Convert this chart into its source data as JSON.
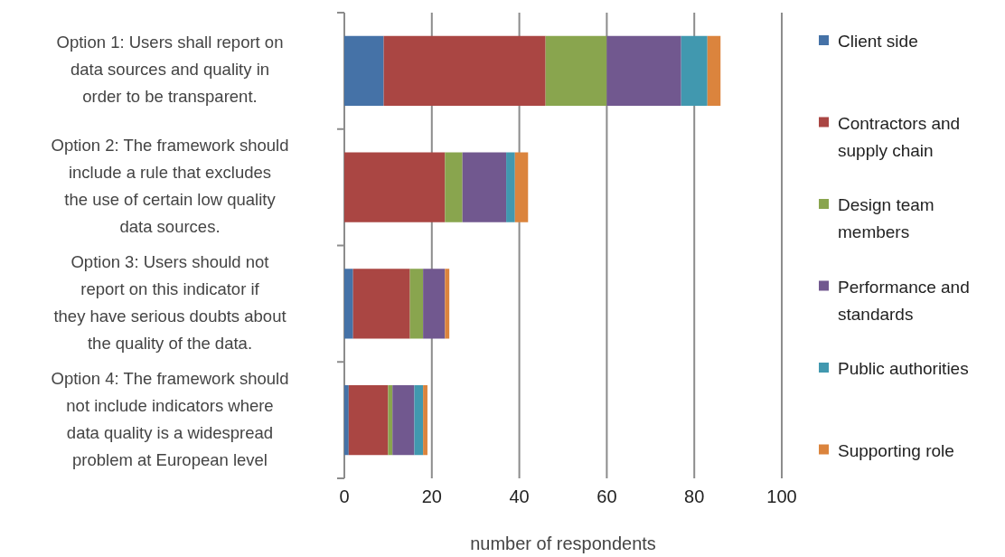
{
  "chart_data": {
    "type": "bar",
    "orientation": "horizontal",
    "stacked": true,
    "xlabel": "number of respondents",
    "categories": [
      "Option 1: Users shall report on data sources and quality in order to be transparent.",
      "Option 2: The framework should include a rule that excludes the use of certain low quality data sources.",
      "Option 3: Users should not report on this indicator if they have serious doubts about the quality of the data.",
      "Option 4: The framework should not include indicators where data quality is a widespread problem at European level"
    ],
    "series": [
      {
        "name": "Client side",
        "color": "#4572a7",
        "values": [
          9,
          0,
          2,
          1
        ]
      },
      {
        "name": "Contractors and supply chain",
        "color": "#aa4643",
        "values": [
          37,
          23,
          13,
          9
        ]
      },
      {
        "name": "Design team members",
        "color": "#89a54e",
        "values": [
          14,
          4,
          3,
          1
        ]
      },
      {
        "name": "Performance and standards",
        "color": "#71588f",
        "values": [
          17,
          10,
          5,
          5
        ]
      },
      {
        "name": "Public authorities",
        "color": "#4198af",
        "values": [
          6,
          2,
          0,
          2
        ]
      },
      {
        "name": "Supporting role",
        "color": "#db843d",
        "values": [
          3,
          3,
          1,
          1
        ]
      }
    ],
    "xlim": [
      0,
      100
    ],
    "xticks": [
      0,
      20,
      40,
      60,
      80,
      100
    ],
    "grid": "x",
    "legend": "right"
  }
}
